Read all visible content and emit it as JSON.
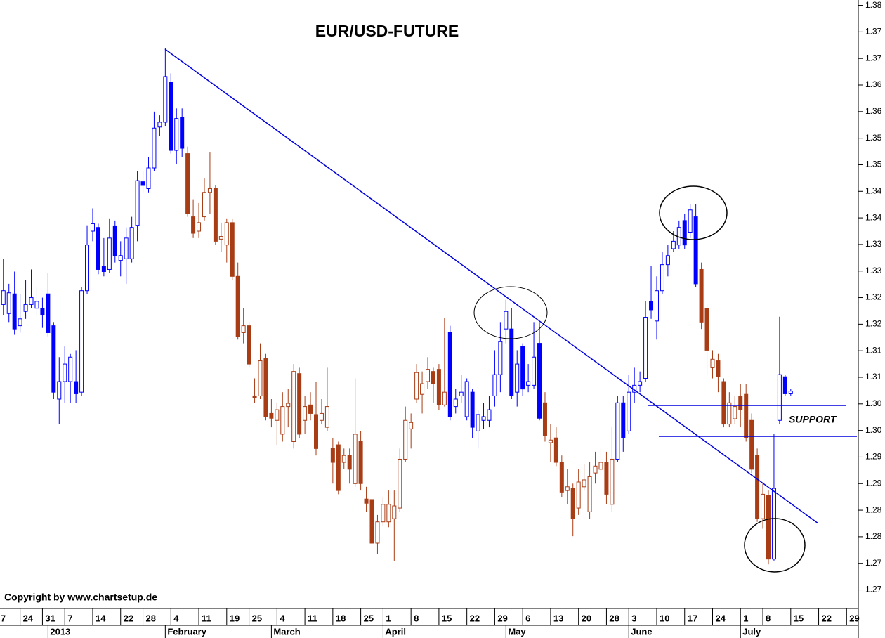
{
  "chart_data": {
    "type": "candlestick",
    "title": "EUR/USD-FUTURE",
    "annotations": [
      "SUPPORT"
    ],
    "copyright": "Copyright by www.chartsetup.de",
    "open": [
      1.3237,
      1.322,
      1.3257,
      1.3197,
      1.3224,
      1.3237,
      1.323,
      1.323,
      1.3257,
      1.3197,
      1.3059,
      1.3092,
      1.3092,
      1.3092,
      1.3072,
      1.3263,
      1.3375,
      1.3382,
      1.3309,
      1.3303,
      1.3385,
      1.332,
      1.3323,
      1.3323,
      1.3386,
      1.3468,
      1.3455,
      1.3494,
      1.3571,
      1.358,
      1.3655,
      1.3527,
      1.3589,
      1.3521,
      1.3402,
      1.3375,
      1.3402,
      1.3448,
      1.3455,
      1.336,
      1.3349,
      1.3391,
      1.329,
      1.3184,
      1.3197,
      1.3065,
      1.3065,
      1.3135,
      1.3032,
      1.3019,
      1.2993,
      1.3045,
      1.2979,
      1.3107,
      1.3019,
      1.3048,
      1.303,
      1.3019,
      1.3006,
      1.2966,
      1.2973,
      1.294,
      1.2953,
      1.29,
      1.2979,
      1.2871,
      1.287,
      1.2788,
      1.2828,
      1.2828,
      1.2834,
      1.2854,
      1.2946,
      1.3003,
      1.3059,
      1.3068,
      1.3092,
      1.3111,
      1.3115,
      1.3048,
      1.3184,
      1.3045,
      1.3065,
      1.3026,
      1.3072,
      1.2999,
      1.3019,
      1.3019,
      1.3065,
      1.3105,
      1.3191,
      1.3191,
      1.3072,
      1.3158,
      1.3085,
      1.3085,
      1.3164,
      1.3052,
      1.2977,
      1.2986,
      1.294,
      1.2887,
      1.2891,
      1.2854,
      1.2894,
      1.2847,
      1.292,
      1.2927,
      1.294,
      1.2861,
      1.2946,
      1.3052,
      1.2999,
      1.3072,
      1.3085,
      1.3098,
      1.3243,
      1.3206,
      1.3263,
      1.3312,
      1.3342,
      1.3349,
      1.3395,
      1.3373,
      1.3402,
      1.3303,
      1.323,
      1.3118,
      1.3131,
      1.3092,
      1.3012,
      1.3022,
      1.3065,
      1.3068,
      1.3019,
      1.2953,
      1.2834,
      1.2878,
      1.2758,
      1.3019,
      1.3101,
      1.3069
    ],
    "high": [
      1.3323,
      1.3276,
      1.3299,
      1.3257,
      1.3283,
      1.3303,
      1.327,
      1.325,
      1.3296,
      1.3204,
      1.3138,
      1.3158,
      1.3144,
      1.3151,
      1.327,
      1.3386,
      1.3418,
      1.3389,
      1.3362,
      1.3399,
      1.3395,
      1.3356,
      1.3382,
      1.3402,
      1.3488,
      1.3488,
      1.3514,
      1.36,
      1.3593,
      1.3719,
      1.3672,
      1.3606,
      1.3606,
      1.3534,
      1.3435,
      1.3428,
      1.3474,
      1.3523,
      1.3461,
      1.3391,
      1.3399,
      1.3399,
      1.3316,
      1.323,
      1.3204,
      1.3098,
      1.3164,
      1.3144,
      1.3059,
      1.3052,
      1.3072,
      1.3078,
      1.3125,
      1.3118,
      1.3065,
      1.3072,
      1.3092,
      1.3059,
      1.3118,
      1.2986,
      1.2979,
      1.2966,
      1.2966,
      1.3098,
      1.2999,
      1.2894,
      1.2887,
      1.2841,
      1.2874,
      1.2887,
      1.2887,
      1.2966,
      1.3045,
      1.3032,
      1.3125,
      1.3111,
      1.3138,
      1.3118,
      1.3125,
      1.3211,
      1.3197,
      1.3078,
      1.3105,
      1.3098,
      1.3078,
      1.3039,
      1.3052,
      1.3065,
      1.3151,
      1.3204,
      1.3246,
      1.323,
      1.3151,
      1.3164,
      1.3125,
      1.3204,
      1.3204,
      1.3072,
      1.3012,
      1.3006,
      1.2953,
      1.2927,
      1.29,
      1.2927,
      1.2937,
      1.294,
      1.296,
      1.2966,
      1.296,
      1.3006,
      1.3065,
      1.3065,
      1.3105,
      1.3118,
      1.3111,
      1.3243,
      1.3309,
      1.329,
      1.3336,
      1.3349,
      1.3375,
      1.3395,
      1.3408,
      1.3426,
      1.3426,
      1.3316,
      1.3237,
      1.3151,
      1.3144,
      1.3098,
      1.3072,
      1.3065,
      1.3088,
      1.3088,
      1.3032,
      1.2966,
      1.29,
      1.2887,
      1.2993,
      1.3214,
      1.3105,
      1.3078
    ],
    "low": [
      1.3217,
      1.3204,
      1.318,
      1.3184,
      1.321,
      1.323,
      1.3217,
      1.3193,
      1.3177,
      1.3059,
      1.3012,
      1.3052,
      1.3052,
      1.3052,
      1.3065,
      1.3257,
      1.3356,
      1.3294,
      1.329,
      1.3296,
      1.3316,
      1.329,
      1.3276,
      1.3316,
      1.3356,
      1.3448,
      1.3448,
      1.3488,
      1.3554,
      1.3573,
      1.3521,
      1.3501,
      1.3514,
      1.3402,
      1.3362,
      1.3362,
      1.3395,
      1.3408,
      1.3349,
      1.3336,
      1.3316,
      1.3283,
      1.3171,
      1.3164,
      1.3118,
      1.3052,
      1.3059,
      1.3019,
      1.3006,
      1.2973,
      1.2979,
      1.3006,
      1.2966,
      1.2986,
      1.2993,
      1.3019,
      1.2953,
      1.3012,
      1.2999,
      1.29,
      1.288,
      1.2927,
      1.29,
      1.2894,
      1.2887,
      1.2847,
      1.2764,
      1.2768,
      1.2821,
      1.2818,
      1.2755,
      1.2847,
      1.294,
      1.2966,
      1.3052,
      1.3032,
      1.3078,
      1.3052,
      1.3039,
      1.3045,
      1.3019,
      1.3032,
      1.3052,
      1.3019,
      1.2986,
      1.2966,
      1.3003,
      1.3006,
      1.3045,
      1.3072,
      1.3164,
      1.3059,
      1.3045,
      1.3065,
      1.3072,
      1.3078,
      1.3019,
      1.2979,
      1.294,
      1.2933,
      1.2874,
      1.2861,
      1.2801,
      1.2841,
      1.2887,
      1.2834,
      1.29,
      1.2913,
      1.2861,
      1.2847,
      1.294,
      1.296,
      1.2993,
      1.3052,
      1.3072,
      1.3092,
      1.321,
      1.3171,
      1.3257,
      1.329,
      1.3336,
      1.3342,
      1.3342,
      1.3362,
      1.327,
      1.3191,
      1.3105,
      1.3098,
      1.3072,
      1.3006,
      1.3006,
      1.3012,
      1.3006,
      1.2979,
      1.292,
      1.2828,
      1.2815,
      1.2748,
      1.2755,
      1.3012,
      1.3065,
      1.3065
    ],
    "close": [
      1.3263,
      1.3259,
      1.3191,
      1.321,
      1.3237,
      1.325,
      1.3243,
      1.3217,
      1.3184,
      1.3072,
      1.3092,
      1.3125,
      1.3138,
      1.3069,
      1.3263,
      1.3349,
      1.3389,
      1.3303,
      1.3299,
      1.3362,
      1.3329,
      1.3329,
      1.3362,
      1.3382,
      1.347,
      1.3461,
      1.3494,
      1.3569,
      1.358,
      1.3666,
      1.3527,
      1.3587,
      1.3531,
      1.3408,
      1.3371,
      1.3391,
      1.3448,
      1.3455,
      1.3356,
      1.3365,
      1.3391,
      1.329,
      1.3177,
      1.3197,
      1.3125,
      1.3061,
      1.3131,
      1.3026,
      1.3023,
      1.3039,
      1.3045,
      1.3051,
      1.3111,
      1.2993,
      1.3045,
      1.3032,
      1.2966,
      1.3032,
      1.3045,
      1.294,
      1.2887,
      1.2953,
      1.2927,
      1.2993,
      1.29,
      1.2863,
      1.2788,
      1.2828,
      1.2861,
      1.2861,
      1.2858,
      1.2946,
      1.3019,
      1.3015,
      1.3109,
      1.3088,
      1.3115,
      1.3088,
      1.3048,
      1.3072,
      1.3026,
      1.3059,
      1.3072,
      1.3092,
      1.3006,
      1.303,
      1.3026,
      1.3039,
      1.3105,
      1.3167,
      1.3224,
      1.3065,
      1.3125,
      1.3078,
      1.3092,
      1.3138,
      1.3023,
      1.299,
      1.2982,
      1.294,
      1.2884,
      1.2894,
      1.2834,
      1.2903,
      1.2907,
      1.2913,
      1.2933,
      1.294,
      1.288,
      1.2946,
      1.3052,
      1.2986,
      1.3072,
      1.3085,
      1.3092,
      1.3213,
      1.3227,
      1.3263,
      1.3312,
      1.3329,
      1.3356,
      1.3382,
      1.3349,
      1.3415,
      1.3276,
      1.3204,
      1.3151,
      1.3134,
      1.3101,
      1.3012,
      1.3052,
      1.3045,
      1.3039,
      1.2986,
      1.2927,
      1.2834,
      1.288,
      1.2758,
      1.2891,
      1.3105,
      1.3069,
      1.3074
    ],
    "colors": [
      "#0000ff",
      "#0000ff",
      "#0000ff",
      "#0000ff",
      "#0000ff",
      "#0000ff",
      "#0000ff",
      "#0000ff",
      "#0000ff",
      "#0000ff",
      "#0000ff",
      "#0000ff",
      "#0000ff",
      "#0000ff",
      "#0000ff",
      "#0000ff",
      "#0000ff",
      "#0000ff",
      "#0000ff",
      "#0000ff",
      "#0000ff",
      "#0000ff",
      "#0000ff",
      "#0000ff",
      "#0000ff",
      "#0000ff",
      "#0000ff",
      "#0000ff",
      "#0000ff",
      "#0000ff",
      "#0000ff",
      "#0000ff",
      "#0000ff",
      "#a83c14",
      "#a83c14",
      "#a83c14",
      "#a83c14",
      "#a83c14",
      "#a83c14",
      "#a83c14",
      "#a83c14",
      "#a83c14",
      "#a83c14",
      "#a83c14",
      "#a83c14",
      "#a83c14",
      "#a83c14",
      "#a83c14",
      "#a83c14",
      "#a83c14",
      "#a83c14",
      "#a83c14",
      "#a83c14",
      "#a83c14",
      "#a83c14",
      "#a83c14",
      "#a83c14",
      "#a83c14",
      "#a83c14",
      "#a83c14",
      "#a83c14",
      "#a83c14",
      "#a83c14",
      "#a83c14",
      "#a83c14",
      "#a83c14",
      "#a83c14",
      "#a83c14",
      "#a83c14",
      "#a83c14",
      "#a83c14",
      "#a83c14",
      "#a83c14",
      "#a83c14",
      "#a83c14",
      "#a83c14",
      "#a83c14",
      "#a83c14",
      "#a83c14",
      "#a83c14",
      "#0000ff",
      "#0000ff",
      "#0000ff",
      "#0000ff",
      "#0000ff",
      "#0000ff",
      "#0000ff",
      "#0000ff",
      "#0000ff",
      "#0000ff",
      "#0000ff",
      "#0000ff",
      "#0000ff",
      "#0000ff",
      "#0000ff",
      "#0000ff",
      "#0000ff",
      "#a83c14",
      "#a83c14",
      "#a83c14",
      "#a83c14",
      "#a83c14",
      "#a83c14",
      "#a83c14",
      "#a83c14",
      "#a83c14",
      "#a83c14",
      "#a83c14",
      "#a83c14",
      "#a83c14",
      "#0000ff",
      "#0000ff",
      "#0000ff",
      "#0000ff",
      "#0000ff",
      "#0000ff",
      "#0000ff",
      "#0000ff",
      "#0000ff",
      "#0000ff",
      "#0000ff",
      "#0000ff",
      "#0000ff",
      "#0000ff",
      "#0000ff",
      "#a83c14",
      "#a83c14",
      "#a83c14",
      "#a83c14",
      "#a83c14",
      "#a83c14",
      "#a83c14",
      "#a83c14",
      "#a83c14",
      "#a83c14",
      "#a83c14",
      "#a83c14",
      "#a83c14",
      "#0000ff",
      "#0000ff",
      "#0000ff",
      "#0000ff"
    ],
    "ylim": [
      1.2665,
      1.381
    ],
    "yticks": [
      1.38,
      {
        "value": 1.375,
        "label": "1.37"
      },
      1.37,
      {
        "value": 1.365,
        "label": "1.36"
      },
      1.36,
      {
        "value": 1.355,
        "label": "1.35"
      },
      1.35,
      {
        "value": 1.345,
        "label": "1.34"
      },
      1.34,
      {
        "value": 1.335,
        "label": "1.33"
      },
      1.33,
      {
        "value": 1.325,
        "label": "1.32"
      },
      1.32,
      {
        "value": 1.315,
        "label": "1.31"
      },
      1.31,
      {
        "value": 1.305,
        "label": "1.30"
      },
      {
        "value": 1.3,
        "label": "1.30"
      },
      {
        "value": 1.295,
        "label": "1.29"
      },
      1.29,
      {
        "value": 1.285,
        "label": "1.28"
      },
      1.28,
      {
        "value": 1.275,
        "label": "1.27"
      },
      1.27
    ],
    "xlim": [
      -0.6,
      153.1
    ],
    "xticks": [
      {
        "value": -1,
        "label": "7"
      },
      {
        "value": 3,
        "label": "24"
      },
      {
        "value": 7,
        "label": "31"
      },
      {
        "value": 11,
        "label": "7"
      },
      {
        "value": 16,
        "label": "14"
      },
      {
        "value": 21,
        "label": "22"
      },
      {
        "value": 25,
        "label": "28"
      },
      {
        "value": 30,
        "label": "4"
      },
      {
        "value": 35,
        "label": "11"
      },
      {
        "value": 40,
        "label": "19"
      },
      {
        "value": 44,
        "label": "25"
      },
      {
        "value": 49,
        "label": "4"
      },
      {
        "value": 54,
        "label": "11"
      },
      {
        "value": 59,
        "label": "18"
      },
      {
        "value": 64,
        "label": "25"
      },
      {
        "value": 68,
        "label": "1"
      },
      {
        "value": 73,
        "label": "8"
      },
      {
        "value": 78,
        "label": "15"
      },
      {
        "value": 83,
        "label": "22"
      },
      {
        "value": 88,
        "label": "29"
      },
      {
        "value": 93,
        "label": "6"
      },
      {
        "value": 98,
        "label": "13"
      },
      {
        "value": 103,
        "label": "20"
      },
      {
        "value": 108,
        "label": "28"
      },
      {
        "value": 112,
        "label": "3"
      },
      {
        "value": 117,
        "label": "10"
      },
      {
        "value": 122,
        "label": "17"
      },
      {
        "value": 127,
        "label": "24"
      },
      {
        "value": 132,
        "label": "1"
      },
      {
        "value": 136,
        "label": "8"
      },
      {
        "value": 141,
        "label": "15"
      },
      {
        "value": 146,
        "label": "22"
      },
      {
        "value": 151,
        "label": "29"
      }
    ],
    "month_ticks": [
      {
        "value": 8,
        "label": "2013"
      },
      {
        "value": 29,
        "label": "February"
      },
      {
        "value": 48,
        "label": "March"
      },
      {
        "value": 68,
        "label": "April"
      },
      {
        "value": 90,
        "label": "May"
      },
      {
        "value": 112,
        "label": "June"
      },
      {
        "value": 132,
        "label": "July"
      }
    ]
  }
}
